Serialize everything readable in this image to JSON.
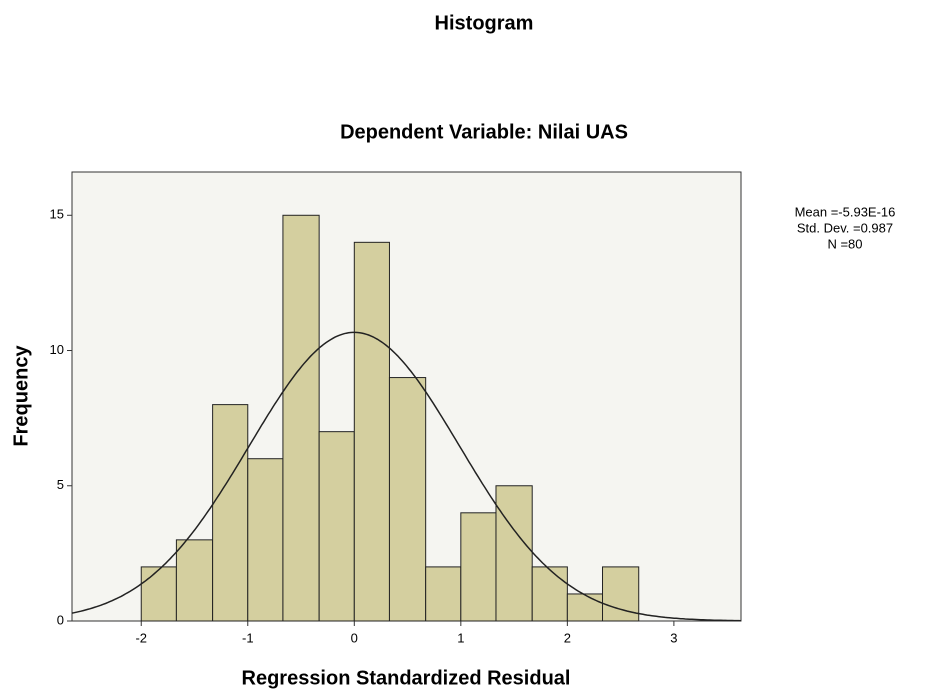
{
  "chart_data": {
    "type": "histogram",
    "title": "Histogram",
    "subtitle": "Dependent Variable: Nilai UAS",
    "x_label": "Regression Standardized Residual",
    "y_label": "Frequency",
    "bins": [
      -2,
      -1.67,
      -1.33,
      -1,
      -0.67,
      -0.33,
      0,
      0.33,
      0.67,
      1,
      1.33,
      1.67,
      2,
      2.33,
      2.67
    ],
    "counts": [
      2,
      3,
      8,
      6,
      15,
      7,
      14,
      9,
      2,
      4,
      5,
      2,
      1,
      2
    ],
    "color": "#d4cf9f",
    "xlim": [
      -2.65,
      3.63
    ],
    "xticks": [
      -2,
      -1,
      0,
      1,
      2,
      3
    ],
    "ylim": [
      0,
      16.6
    ],
    "yticks": [
      0,
      5,
      10,
      15
    ],
    "stats": [
      {
        "value": -5.93e-16,
        "label": "Mean =-5.93E-16"
      },
      {
        "value": 0.987,
        "label": "Std. Dev. =0.987"
      },
      {
        "value": 80,
        "label": "N =80"
      }
    ],
    "normal_curve": true
  }
}
